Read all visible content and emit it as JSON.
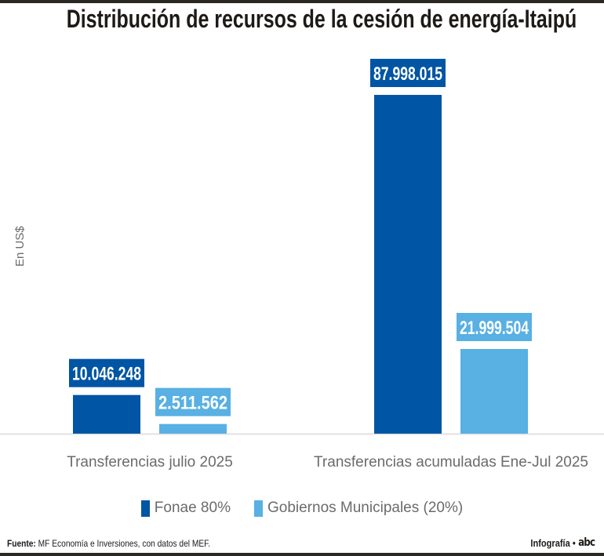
{
  "header": {
    "title": "Distribución de recursos de la cesión de energía-Itaipú"
  },
  "chart_data": {
    "type": "bar",
    "title": "Distribución de recursos de la cesión de energía-Itaipú",
    "xlabel": "",
    "ylabel": "En US$",
    "categories": [
      "Transferencias julio 2025",
      "Transferencias acumuladas Ene-Jul 2025"
    ],
    "series": [
      {
        "name": "Fonae 80%",
        "color": "#0055a4",
        "values": [
          10046248,
          87998015
        ],
        "labels": [
          "10.046.248",
          "87.998.015"
        ]
      },
      {
        "name": "Gobiernos Municipales (20%)",
        "color": "#58b0e3",
        "values": [
          2511562,
          21999504
        ],
        "labels": [
          "2.511.562",
          "21.999.504"
        ]
      }
    ],
    "ylim": [
      0,
      88000000
    ],
    "grid": false,
    "legend_position": "bottom-center"
  },
  "footer": {
    "source_label": "Fuente:",
    "source_text": "MF Economía e Inversiones, con datos del MEF.",
    "credit": "Infografía •",
    "logo": "abc"
  },
  "colors": {
    "fonae": "#0055a4",
    "gobiernos": "#58b0e3",
    "text_dark": "#1d1a17",
    "text_gray": "#6b6b6b",
    "baseline": "#e2e2e2"
  }
}
